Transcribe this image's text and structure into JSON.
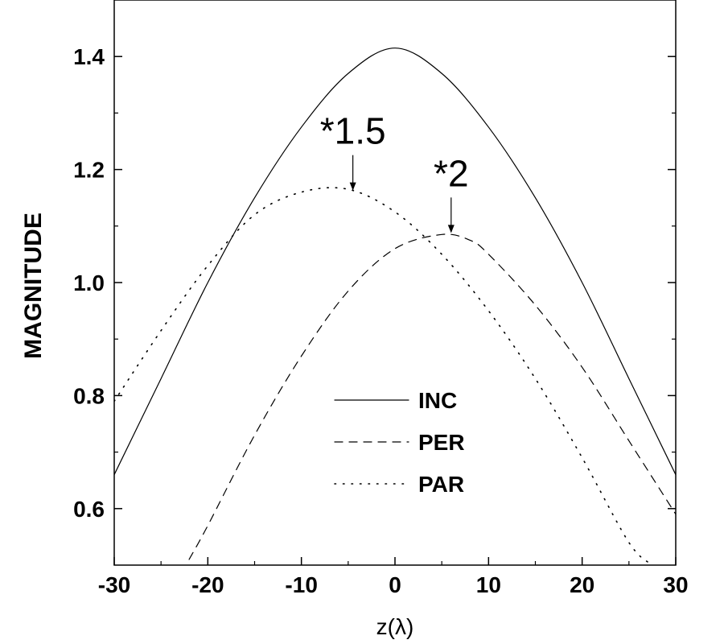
{
  "chart_data": {
    "type": "line",
    "title": "",
    "xlabel": "z(λ)",
    "ylabel": "MAGNITUDE",
    "xlim": [
      -30,
      30
    ],
    "ylim": [
      0.5,
      1.5
    ],
    "xticks": [
      -30,
      -20,
      -10,
      0,
      10,
      20,
      30
    ],
    "xtick_labels": [
      "-30",
      "-20",
      "-10",
      "0",
      "10",
      "20",
      "30"
    ],
    "yticks": [
      0.6,
      0.8,
      1.0,
      1.2,
      1.4
    ],
    "ytick_labels": [
      "0.6",
      "0.8",
      "1.0",
      "1.2",
      "1.4"
    ],
    "grid": false,
    "legend_position": "center-right",
    "series": [
      {
        "name": "INC",
        "style": "solid",
        "x": [
          -30,
          -25,
          -20,
          -15,
          -10,
          -5,
          0,
          5,
          10,
          15,
          20,
          25,
          30
        ],
        "y": [
          0.66,
          0.83,
          1.0,
          1.15,
          1.275,
          1.37,
          1.415,
          1.37,
          1.275,
          1.15,
          1.0,
          0.83,
          0.66
        ]
      },
      {
        "name": "PER",
        "style": "dashed",
        "x": [
          -22,
          -20,
          -15,
          -10,
          -5,
          0,
          5,
          8,
          10,
          15,
          20,
          25,
          30
        ],
        "y": [
          0.51,
          0.57,
          0.73,
          0.87,
          0.985,
          1.06,
          1.085,
          1.075,
          1.05,
          0.96,
          0.85,
          0.72,
          0.59
        ]
      },
      {
        "name": "PAR",
        "style": "dotted",
        "x": [
          -30,
          -25,
          -20,
          -15,
          -10,
          -5,
          0,
          5,
          10,
          15,
          20,
          25,
          27.5
        ],
        "y": [
          0.79,
          0.915,
          1.03,
          1.12,
          1.16,
          1.165,
          1.125,
          1.05,
          0.95,
          0.83,
          0.69,
          0.54,
          0.5
        ]
      }
    ],
    "annotations": [
      {
        "text": "*1.5",
        "x": -4.5,
        "y": 1.16
      },
      {
        "text": "*2",
        "x": 6,
        "y": 1.085
      }
    ]
  }
}
